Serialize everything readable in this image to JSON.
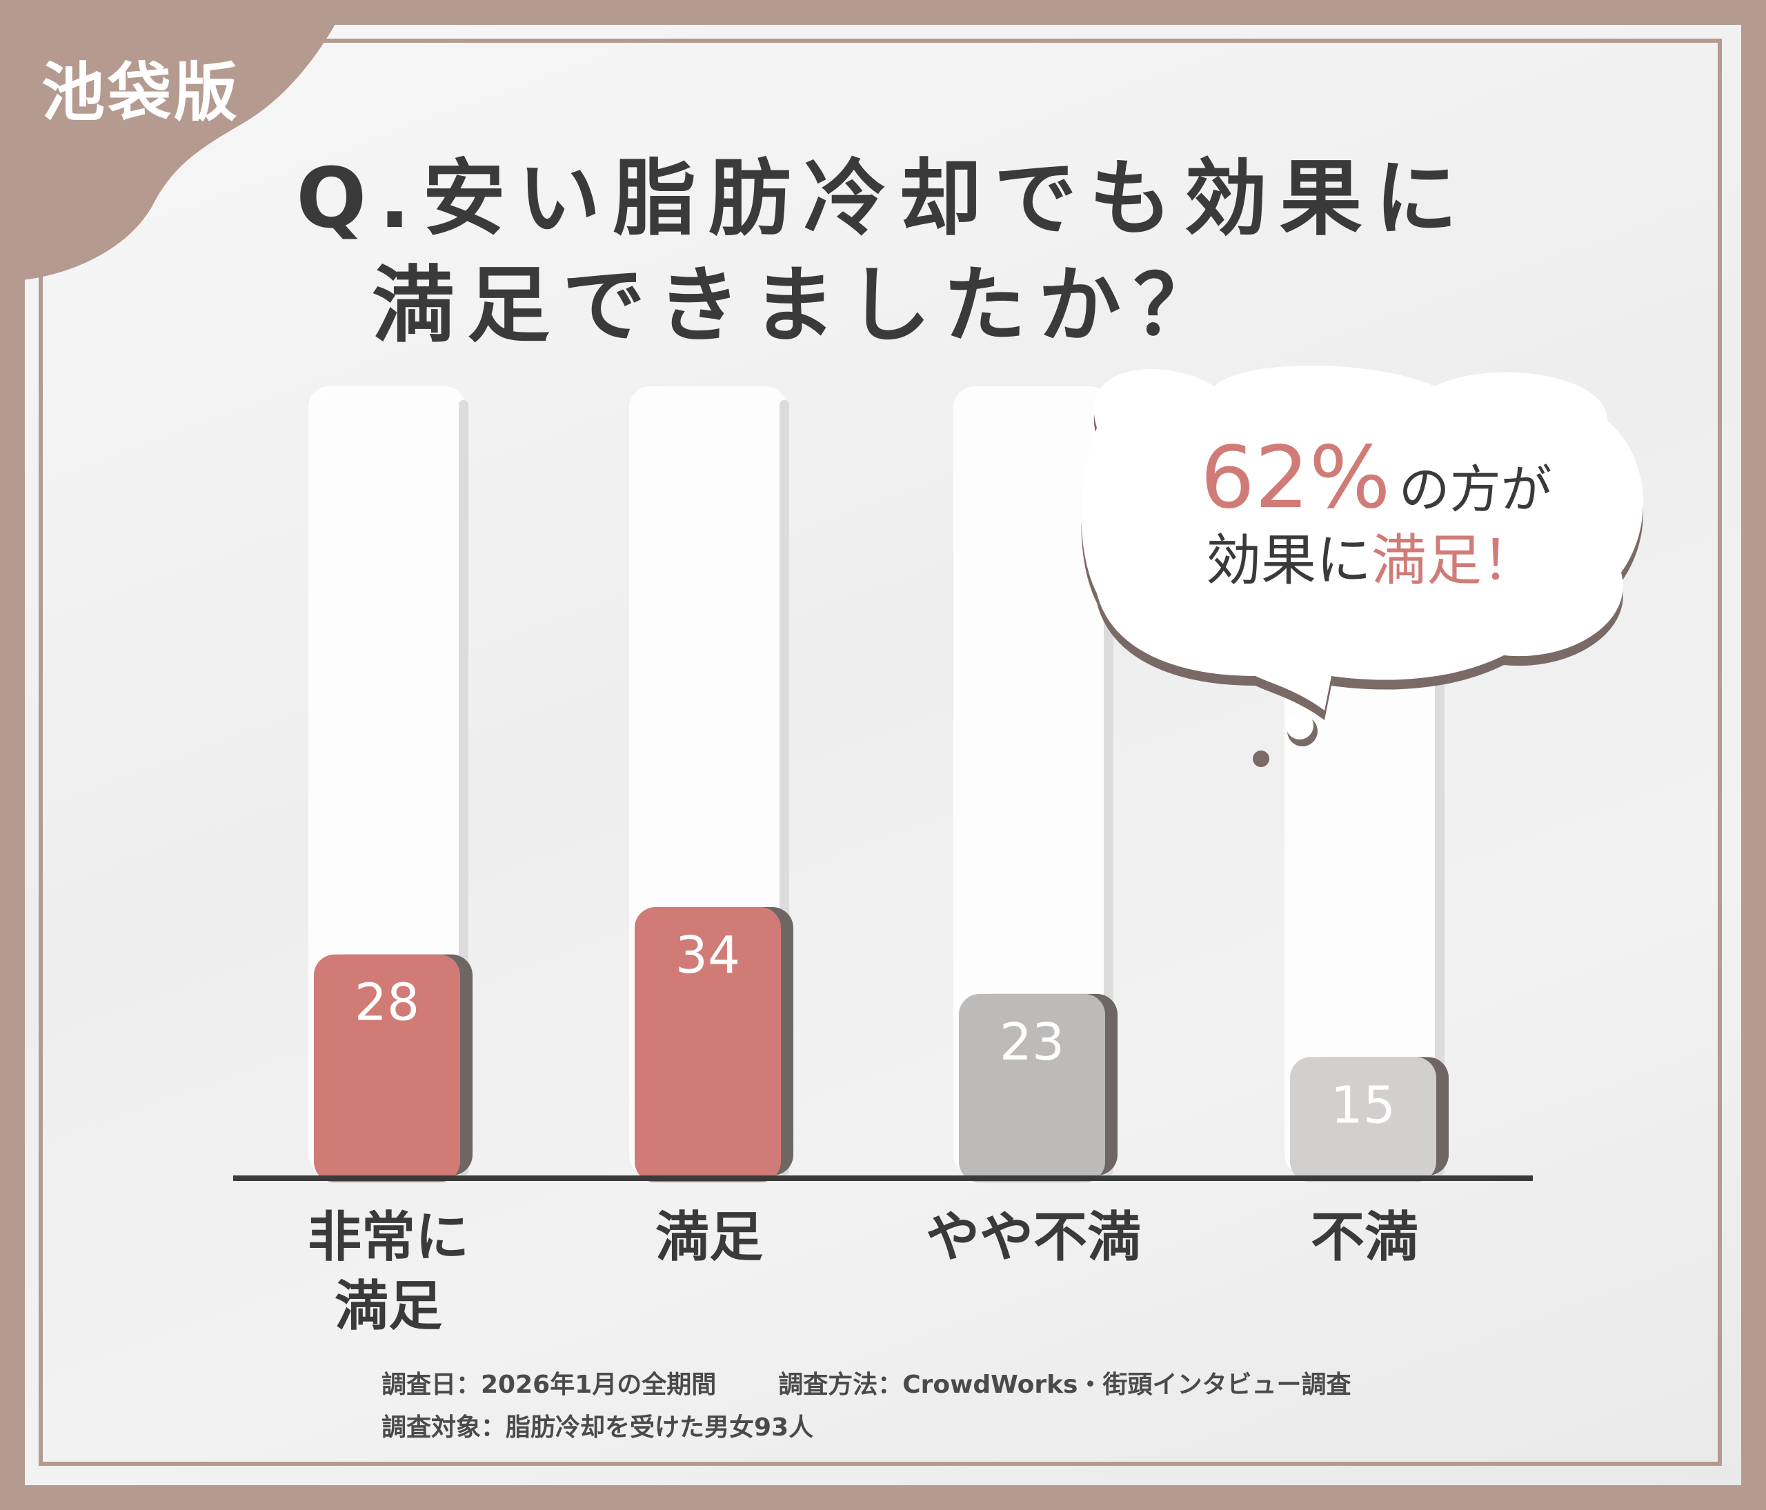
{
  "badge": "池袋版",
  "title": {
    "line1": "Q.安い脂肪冷却でも効果に",
    "line2": "満足できましたか？"
  },
  "callout": {
    "percent": "62%",
    "line1_suffix": "の方が",
    "line2_prefix": "効果に",
    "line2_highlight": "満足！",
    "colors": {
      "highlight": "#d17b76",
      "text": "#3a3a3a"
    }
  },
  "chart_data": {
    "type": "bar",
    "categories": [
      [
        "非常に",
        "満足"
      ],
      [
        "満足"
      ],
      [
        "やや不満"
      ],
      [
        "不満"
      ]
    ],
    "values": [
      28,
      34,
      23,
      15
    ],
    "value_labels": [
      "28",
      "34",
      "23",
      "15"
    ],
    "ylim": [
      0,
      100
    ],
    "grid": false,
    "colors": [
      "#d17b76",
      "#d17b76",
      "#bdbbba",
      "#d2d0cf"
    ]
  },
  "footer": {
    "date": "調査日：2026年1月の全期間",
    "method": "調査方法：CrowdWorks・街頭インタビュー調査",
    "target": "調査対象：脂肪冷却を受けた男女93人"
  }
}
